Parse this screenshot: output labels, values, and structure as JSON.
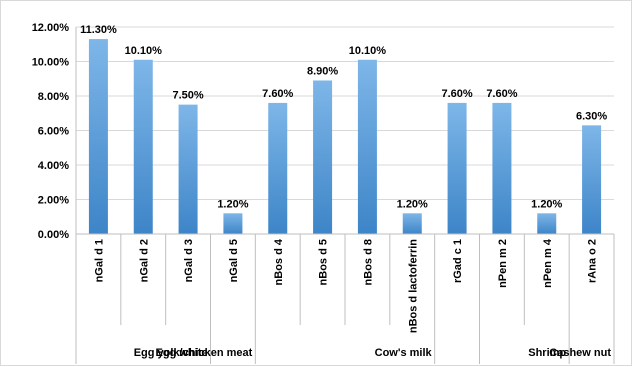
{
  "chart_data": {
    "type": "bar",
    "title": "",
    "xlabel": "",
    "ylabel": "",
    "ylim": [
      0,
      12
    ],
    "yticks": [
      "0.00%",
      "2.00%",
      "4.00%",
      "6.00%",
      "8.00%",
      "10.00%",
      "12.00%"
    ],
    "categories": [
      "nGal d 1",
      "nGal d 2",
      "nGal d 3",
      "nGal d 5",
      "nBos d 4",
      "nBos d 5",
      "nBos d 8",
      "nBos d lactoferrin",
      "rGad c 1",
      "nPen m 2",
      "nPen m 4",
      "rAna o 2"
    ],
    "values": [
      11.3,
      10.1,
      7.5,
      1.2,
      7.6,
      8.9,
      10.1,
      1.2,
      7.6,
      7.6,
      1.2,
      6.3
    ],
    "data_labels": [
      "11.30%",
      "10.10%",
      "7.50%",
      "1.20%",
      "7.60%",
      "8.90%",
      "10.10%",
      "1.20%",
      "7.60%",
      "7.60%",
      "1.20%",
      "6.30%"
    ],
    "groups": [
      {
        "name": "Egg white",
        "start": 0,
        "end": 2
      },
      {
        "name": "Egg yolk/chicken meat",
        "start": 3,
        "end": 3
      },
      {
        "name": "Cow's milk",
        "start": 4,
        "end": 7
      },
      {
        "name": "",
        "start": 8,
        "end": 8
      },
      {
        "name": "Shrimp",
        "start": 9,
        "end": 10
      },
      {
        "name": "Cashew nut",
        "start": 11,
        "end": 11
      }
    ],
    "grid": true,
    "legend": "none",
    "colors": {
      "bar_top": "#7eb6e8",
      "bar_bottom": "#3d85c8",
      "grid": "#d9d9d9",
      "axis": "#bfbfbf"
    }
  }
}
